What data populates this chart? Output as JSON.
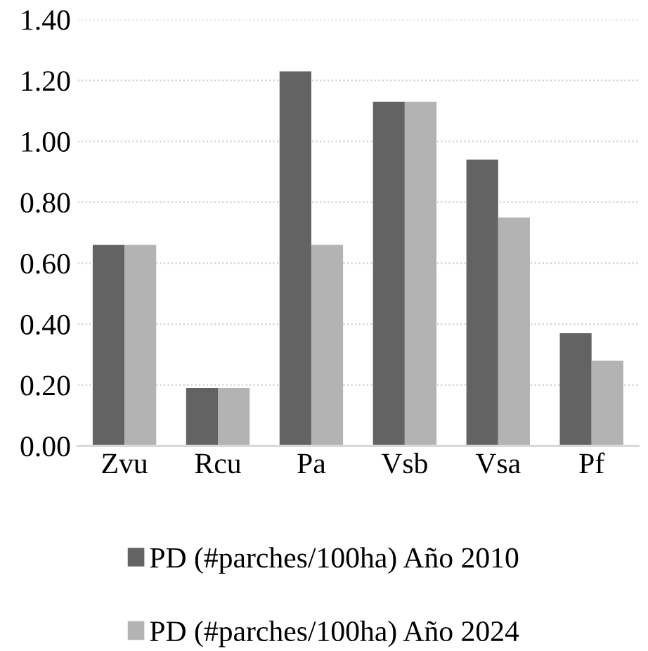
{
  "chart_data": {
    "type": "bar",
    "categories": [
      "Zvu",
      "Rcu",
      "Pa",
      "Vsb",
      "Vsa",
      "Pf"
    ],
    "series": [
      {
        "name": "PD (#parches/100ha) Año 2010",
        "color": "#636363",
        "values": [
          0.66,
          0.19,
          1.23,
          1.13,
          0.94,
          0.37
        ]
      },
      {
        "name": "PD (#parches/100ha) Año 2024",
        "color": "#b3b3b3",
        "values": [
          0.66,
          0.19,
          0.66,
          1.13,
          0.75,
          0.28
        ]
      }
    ],
    "ylim": [
      0,
      1.4
    ],
    "yticks": [
      {
        "value": 0,
        "label": "0.00"
      },
      {
        "value": 0.2,
        "label": "0.20"
      },
      {
        "value": 0.4,
        "label": "0.40"
      },
      {
        "value": 0.6,
        "label": "0.60"
      },
      {
        "value": 0.8,
        "label": "0.80"
      },
      {
        "value": 1.0,
        "label": "1.00"
      },
      {
        "value": 1.2,
        "label": "1.20"
      },
      {
        "value": 1.4,
        "label": "1.40"
      }
    ],
    "grid": "y",
    "legend": "bottom"
  }
}
